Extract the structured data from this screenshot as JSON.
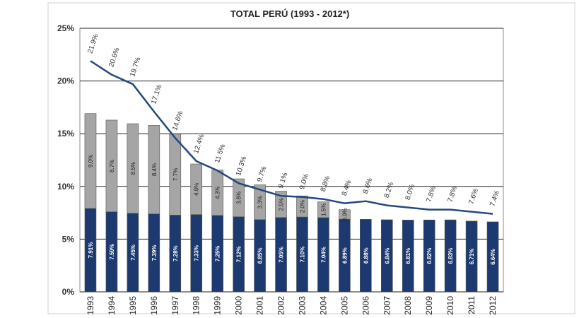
{
  "chart_data": {
    "type": "bar",
    "title": "TOTAL PERÚ (1993 - 2012*)",
    "categories": [
      "1993",
      "1994",
      "1995",
      "1996",
      "1997",
      "1998",
      "1999",
      "2000",
      "2001",
      "2002",
      "2003",
      "2004",
      "2005",
      "2006",
      "2007",
      "2008",
      "2009",
      "2010",
      "2011",
      "2012"
    ],
    "series": [
      {
        "type": "bar",
        "color": "#1c3a70",
        "values": [
          7.91,
          7.59,
          7.45,
          7.39,
          7.28,
          7.33,
          7.25,
          7.12,
          6.85,
          7.05,
          7.1,
          7.04,
          6.89,
          6.88,
          6.84,
          6.81,
          6.82,
          6.83,
          6.71,
          6.64
        ],
        "value_labels": [
          "7.91%",
          "7.59%",
          "7.45%",
          "7.39%",
          "7.28%",
          "7.33%",
          "7.25%",
          "7.12%",
          "6.85%",
          "7.05%",
          "7.10%",
          "7.04%",
          "6.89%",
          "6.88%",
          "6.84%",
          "6.81%",
          "6.82%",
          "6.83%",
          "6.71%",
          "6.64%"
        ]
      },
      {
        "type": "bar",
        "color": "#a5a5a5",
        "values": [
          9.0,
          8.7,
          8.5,
          8.4,
          7.7,
          4.8,
          4.3,
          3.6,
          3.3,
          2.5,
          2.0,
          1.5,
          0.9,
          null,
          null,
          null,
          null,
          null,
          null,
          null
        ],
        "value_labels": [
          "9.0%",
          "8.7%",
          "8.5%",
          "8.4%",
          "7.7%",
          "4.8%",
          "4.3%",
          "3.6%",
          "3.3%",
          "2.5%",
          "2.0%",
          "1.5%",
          "0.9%",
          null,
          null,
          null,
          null,
          null,
          null,
          null
        ]
      },
      {
        "type": "line",
        "color": "#24487f",
        "values": [
          21.9,
          20.6,
          19.7,
          17.1,
          14.6,
          12.4,
          11.5,
          10.3,
          9.7,
          9.1,
          9.0,
          8.8,
          8.4,
          8.6,
          8.2,
          8.0,
          7.8,
          7.8,
          7.6,
          7.4
        ],
        "value_labels": [
          "21.9%",
          "20.6%",
          "19.7%",
          "17.1%",
          "14.6%",
          "12.4%",
          "11.5%",
          "10.3%",
          "9.7%",
          "9.1%",
          "9.0%",
          "8.8%",
          "8.4%",
          "8.6%",
          "8.2%",
          "8.0%",
          "7.8%",
          "7.8%",
          "7.6%",
          "7.4%"
        ]
      }
    ],
    "ylim": [
      0,
      25
    ],
    "yticks": [
      {
        "value": 0,
        "label": "0%"
      },
      {
        "value": 5,
        "label": "5%"
      },
      {
        "value": 10,
        "label": "10%"
      },
      {
        "value": 15,
        "label": "15%"
      },
      {
        "value": 20,
        "label": "20%"
      },
      {
        "value": 25,
        "label": "25%"
      }
    ],
    "grid": true
  }
}
